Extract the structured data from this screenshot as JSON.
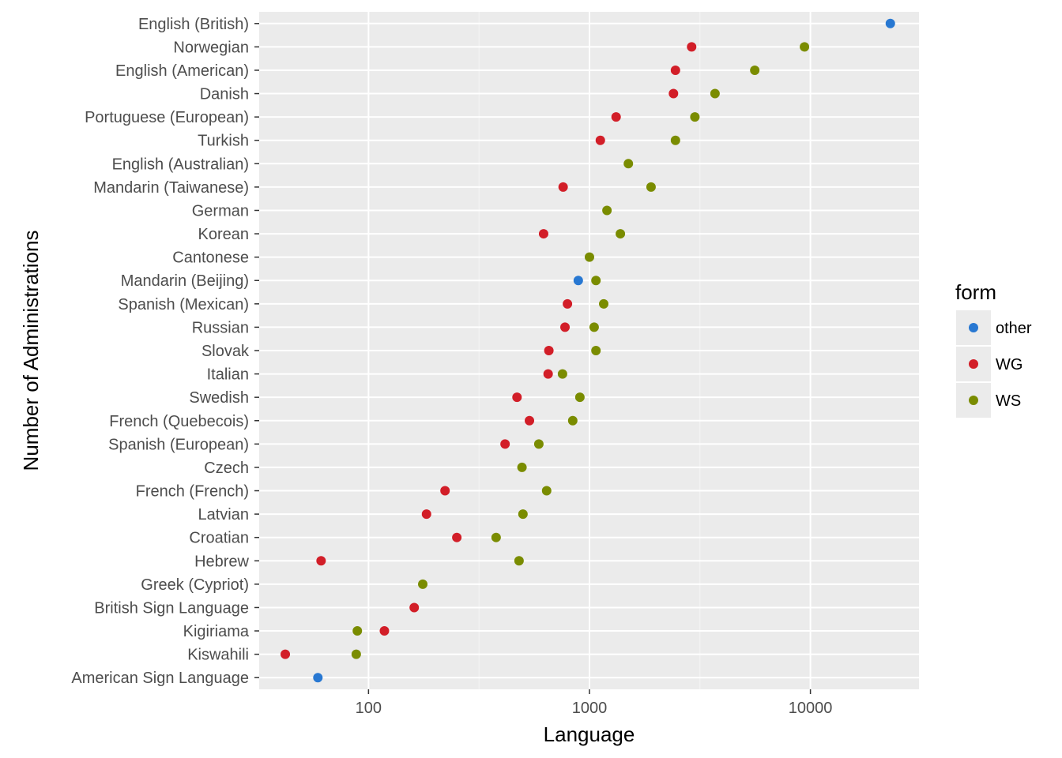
{
  "chart_data": {
    "type": "scatter",
    "title": "",
    "xlabel": "Language",
    "ylabel": "Number of Administrations",
    "x_scale": "log10",
    "xlim": [
      32,
      31000
    ],
    "x_ticks": [
      100,
      1000,
      10000
    ],
    "x_tick_labels": [
      "100",
      "1000",
      "10000"
    ],
    "grid": true,
    "legend": {
      "title": "form",
      "position": "right",
      "entries": [
        {
          "name": "other",
          "color": "#2878d2"
        },
        {
          "name": "WG",
          "color": "#d21e28"
        },
        {
          "name": "WS",
          "color": "#7a8c00"
        }
      ]
    },
    "categories": [
      "English (British)",
      "Norwegian",
      "English (American)",
      "Danish",
      "Portuguese (European)",
      "Turkish",
      "English (Australian)",
      "Mandarin (Taiwanese)",
      "German",
      "Korean",
      "Cantonese",
      "Mandarin (Beijing)",
      "Spanish (Mexican)",
      "Russian",
      "Slovak",
      "Italian",
      "Swedish",
      "French (Quebecois)",
      "Spanish (European)",
      "Czech",
      "French (French)",
      "Latvian",
      "Croatian",
      "Hebrew",
      "Greek (Cypriot)",
      "British Sign Language",
      "Kigiriama",
      "Kiswahili",
      "American Sign Language"
    ],
    "series": [
      {
        "name": "other",
        "color": "#2878d2",
        "points": [
          {
            "category": "English (British)",
            "x": 23000
          },
          {
            "category": "Mandarin (Beijing)",
            "x": 890
          },
          {
            "category": "American Sign Language",
            "x": 59
          }
        ]
      },
      {
        "name": "WG",
        "color": "#d21e28",
        "points": [
          {
            "category": "Norwegian",
            "x": 2900
          },
          {
            "category": "English (American)",
            "x": 2450
          },
          {
            "category": "Danish",
            "x": 2400
          },
          {
            "category": "Portuguese (European)",
            "x": 1320
          },
          {
            "category": "Turkish",
            "x": 1120
          },
          {
            "category": "Mandarin (Taiwanese)",
            "x": 760
          },
          {
            "category": "Korean",
            "x": 620
          },
          {
            "category": "Spanish (Mexican)",
            "x": 795
          },
          {
            "category": "Russian",
            "x": 775
          },
          {
            "category": "Slovak",
            "x": 655
          },
          {
            "category": "Italian",
            "x": 650
          },
          {
            "category": "Swedish",
            "x": 470
          },
          {
            "category": "French (Quebecois)",
            "x": 535
          },
          {
            "category": "Spanish (European)",
            "x": 415
          },
          {
            "category": "French (French)",
            "x": 222
          },
          {
            "category": "Latvian",
            "x": 183
          },
          {
            "category": "Croatian",
            "x": 251
          },
          {
            "category": "Hebrew",
            "x": 61
          },
          {
            "category": "British Sign Language",
            "x": 161
          },
          {
            "category": "Kigiriama",
            "x": 118
          },
          {
            "category": "Kiswahili",
            "x": 42
          }
        ]
      },
      {
        "name": "WS",
        "color": "#7a8c00",
        "points": [
          {
            "category": "Norwegian",
            "x": 9400
          },
          {
            "category": "English (American)",
            "x": 5600
          },
          {
            "category": "Danish",
            "x": 3700
          },
          {
            "category": "Portuguese (European)",
            "x": 3000
          },
          {
            "category": "Turkish",
            "x": 2450
          },
          {
            "category": "English (Australian)",
            "x": 1500
          },
          {
            "category": "Mandarin (Taiwanese)",
            "x": 1900
          },
          {
            "category": "German",
            "x": 1200
          },
          {
            "category": "Korean",
            "x": 1380
          },
          {
            "category": "Cantonese",
            "x": 1000
          },
          {
            "category": "Mandarin (Beijing)",
            "x": 1070
          },
          {
            "category": "Spanish (Mexican)",
            "x": 1160
          },
          {
            "category": "Russian",
            "x": 1050
          },
          {
            "category": "Slovak",
            "x": 1070
          },
          {
            "category": "Italian",
            "x": 755
          },
          {
            "category": "Swedish",
            "x": 905
          },
          {
            "category": "French (Quebecois)",
            "x": 840
          },
          {
            "category": "Spanish (European)",
            "x": 590
          },
          {
            "category": "Czech",
            "x": 495
          },
          {
            "category": "French (French)",
            "x": 640
          },
          {
            "category": "Latvian",
            "x": 500
          },
          {
            "category": "Croatian",
            "x": 378
          },
          {
            "category": "Hebrew",
            "x": 480
          },
          {
            "category": "Greek (Cypriot)",
            "x": 176
          },
          {
            "category": "Kigiriama",
            "x": 89
          },
          {
            "category": "Kiswahili",
            "x": 88
          }
        ]
      }
    ]
  }
}
